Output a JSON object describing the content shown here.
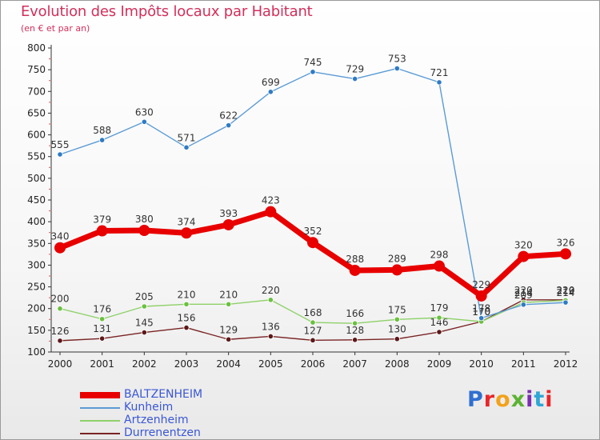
{
  "header": {
    "title": "Evolution des Impôts locaux par Habitant",
    "subtitle": "(en € et par an)"
  },
  "logo": {
    "text": "Proxiti",
    "letter_colors": [
      "#2f6fd0",
      "#e9262a",
      "#f2a21b",
      "#5db233",
      "#7b2fb0",
      "#2fa6d6",
      "#e9262a"
    ]
  },
  "chart_data": {
    "type": "line",
    "title": "Evolution des Impôts locaux par Habitant",
    "subtitle": "(en € et par an)",
    "xlabel": "",
    "ylabel": "",
    "categories": [
      "2000",
      "2001",
      "2002",
      "2003",
      "2004",
      "2005",
      "2006",
      "2007",
      "2008",
      "2009",
      "2010",
      "2011",
      "2012"
    ],
    "ylim": [
      100,
      800
    ],
    "yticks": [
      "100",
      "150",
      "200",
      "250",
      "300",
      "350",
      "400",
      "450",
      "500",
      "550",
      "600",
      "650",
      "700",
      "750",
      "800"
    ],
    "grid": false,
    "legend_position": "bottom-left",
    "series": [
      {
        "name": "BALTZENHEIM",
        "color": "#e80000",
        "values": [
          340,
          379,
          380,
          374,
          393,
          423,
          352,
          288,
          289,
          298,
          229,
          320,
          326
        ],
        "labels": [
          "340",
          "379",
          "380",
          "374",
          "393",
          "423",
          "352",
          "288",
          "289",
          "298",
          "229",
          "320",
          "326"
        ]
      },
      {
        "name": "Kunheim",
        "color": "#5b9bd5",
        "values": [
          555,
          588,
          630,
          571,
          622,
          699,
          745,
          729,
          753,
          721,
          178,
          209,
          214
        ],
        "labels": [
          "555",
          "588",
          "630",
          "571",
          "622",
          "699",
          "745",
          "729",
          "753",
          "721",
          "178",
          "209",
          "214"
        ]
      },
      {
        "name": "Artzenheim",
        "color": "#8fd16a",
        "values": [
          200,
          176,
          205,
          210,
          210,
          220,
          168,
          166,
          175,
          179,
          170,
          214,
          219
        ],
        "labels": [
          "200",
          "176",
          "205",
          "210",
          "210",
          "220",
          "168",
          "166",
          "175",
          "179",
          "170",
          "214",
          "219"
        ]
      },
      {
        "name": "Durrenentzen",
        "color": "#7a2424",
        "values": [
          126,
          131,
          145,
          156,
          129,
          136,
          127,
          128,
          130,
          146,
          170,
          220,
          220
        ],
        "labels": [
          "126",
          "131",
          "145",
          "156",
          "129",
          "136",
          "127",
          "128",
          "130",
          "146",
          "170",
          "220",
          "220"
        ]
      }
    ]
  }
}
